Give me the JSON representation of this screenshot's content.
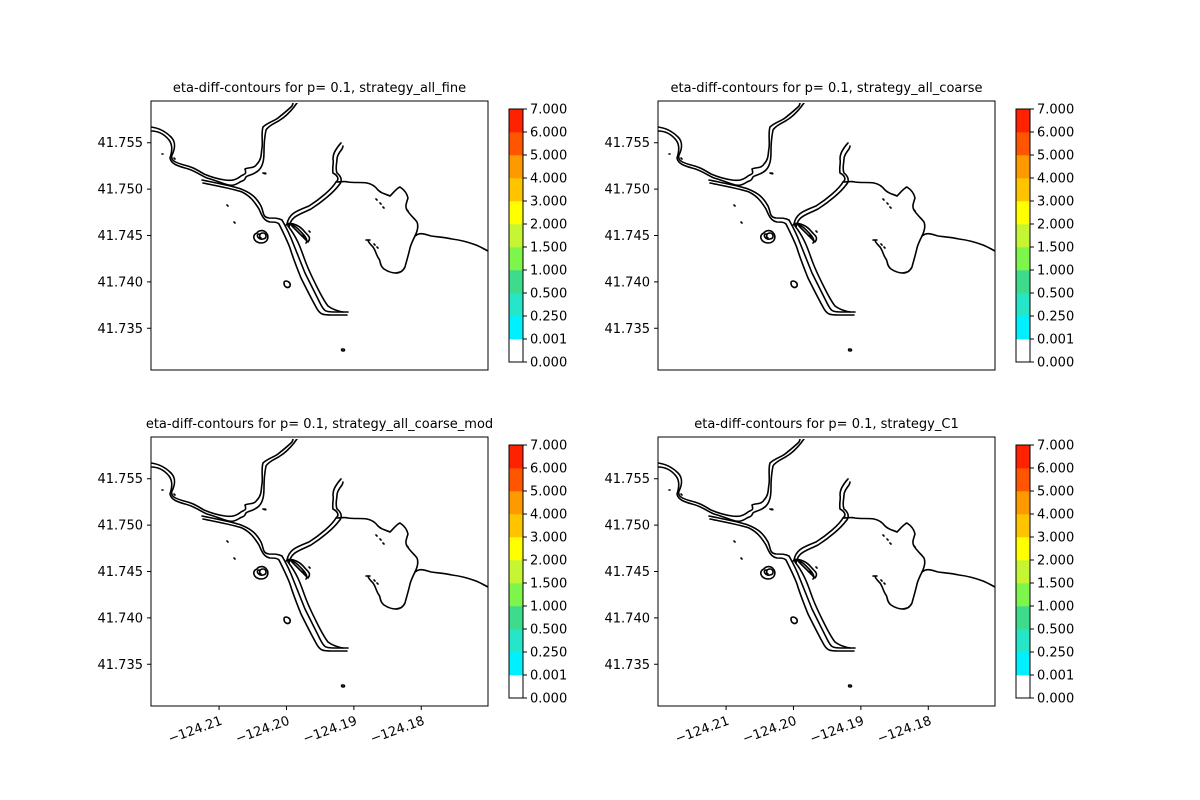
{
  "chart_data": [
    {
      "type": "contour",
      "title": "eta-diff-contours for p= 0.1, strategy_all_fine",
      "yticks": [
        "41.755",
        "41.750",
        "41.745",
        "41.740",
        "41.735"
      ],
      "ytick_values": [
        41.755,
        41.75,
        41.745,
        41.74,
        41.735
      ],
      "xticks": [],
      "xlim": [
        -124.2201,
        -124.1701
      ],
      "ylim": [
        41.7305,
        41.7595
      ],
      "colorbar": {
        "levels": [
          "0.000",
          "0.001",
          "0.250",
          "0.500",
          "1.000",
          "1.500",
          "2.000",
          "3.000",
          "4.000",
          "5.000",
          "6.000",
          "7.000"
        ],
        "colors": [
          "#ffffff",
          "#00f0ff",
          "#25e6c8",
          "#3cdc8c",
          "#7ef54b",
          "#c6f534",
          "#ffff00",
          "#ffc400",
          "#ff9900",
          "#ff5500",
          "#ff2200"
        ]
      },
      "contour_values": []
    },
    {
      "type": "contour",
      "title": "eta-diff-contours for p= 0.1, strategy_all_coarse",
      "yticks": [
        "41.755",
        "41.750",
        "41.745",
        "41.740",
        "41.735"
      ],
      "ytick_values": [
        41.755,
        41.75,
        41.745,
        41.74,
        41.735
      ],
      "xticks": [],
      "xlim": [
        -124.2201,
        -124.1701
      ],
      "ylim": [
        41.7305,
        41.7595
      ],
      "colorbar": {
        "levels": [
          "0.000",
          "0.001",
          "0.250",
          "0.500",
          "1.000",
          "1.500",
          "2.000",
          "3.000",
          "4.000",
          "5.000",
          "6.000",
          "7.000"
        ],
        "colors": [
          "#ffffff",
          "#00f0ff",
          "#25e6c8",
          "#3cdc8c",
          "#7ef54b",
          "#c6f534",
          "#ffff00",
          "#ffc400",
          "#ff9900",
          "#ff5500",
          "#ff2200"
        ]
      },
      "contour_values": []
    },
    {
      "type": "contour",
      "title": "eta-diff-contours for p= 0.1, strategy_all_coarse_mod",
      "yticks": [
        "41.755",
        "41.750",
        "41.745",
        "41.740",
        "41.735"
      ],
      "ytick_values": [
        41.755,
        41.75,
        41.745,
        41.74,
        41.735
      ],
      "xticks": [
        "−124.21",
        "−124.20",
        "−124.19",
        "−124.18"
      ],
      "xtick_values": [
        -124.21,
        -124.2,
        -124.19,
        -124.18
      ],
      "xlim": [
        -124.2201,
        -124.1701
      ],
      "ylim": [
        41.7305,
        41.7595
      ],
      "colorbar": {
        "levels": [
          "0.000",
          "0.001",
          "0.250",
          "0.500",
          "1.000",
          "1.500",
          "2.000",
          "3.000",
          "4.000",
          "5.000",
          "6.000",
          "7.000"
        ],
        "colors": [
          "#ffffff",
          "#00f0ff",
          "#25e6c8",
          "#3cdc8c",
          "#7ef54b",
          "#c6f534",
          "#ffff00",
          "#ffc400",
          "#ff9900",
          "#ff5500",
          "#ff2200"
        ]
      },
      "contour_values": []
    },
    {
      "type": "contour",
      "title": "eta-diff-contours for p= 0.1, strategy_C1",
      "yticks": [
        "41.755",
        "41.750",
        "41.745",
        "41.740",
        "41.735"
      ],
      "ytick_values": [
        41.755,
        41.75,
        41.745,
        41.74,
        41.735
      ],
      "xticks": [
        "−124.21",
        "−124.20",
        "−124.19",
        "−124.18"
      ],
      "xtick_values": [
        -124.21,
        -124.2,
        -124.19,
        -124.18
      ],
      "xlim": [
        -124.2201,
        -124.1701
      ],
      "ylim": [
        41.7305,
        41.7595
      ],
      "colorbar": {
        "levels": [
          "0.000",
          "0.001",
          "0.250",
          "0.500",
          "1.000",
          "1.500",
          "2.000",
          "3.000",
          "4.000",
          "5.000",
          "6.000",
          "7.000"
        ],
        "colors": [
          "#ffffff",
          "#00f0ff",
          "#25e6c8",
          "#3cdc8c",
          "#7ef54b",
          "#c6f534",
          "#ffff00",
          "#ffc400",
          "#ff9900",
          "#ff5500",
          "#ff2200"
        ]
      },
      "contour_values": []
    }
  ]
}
